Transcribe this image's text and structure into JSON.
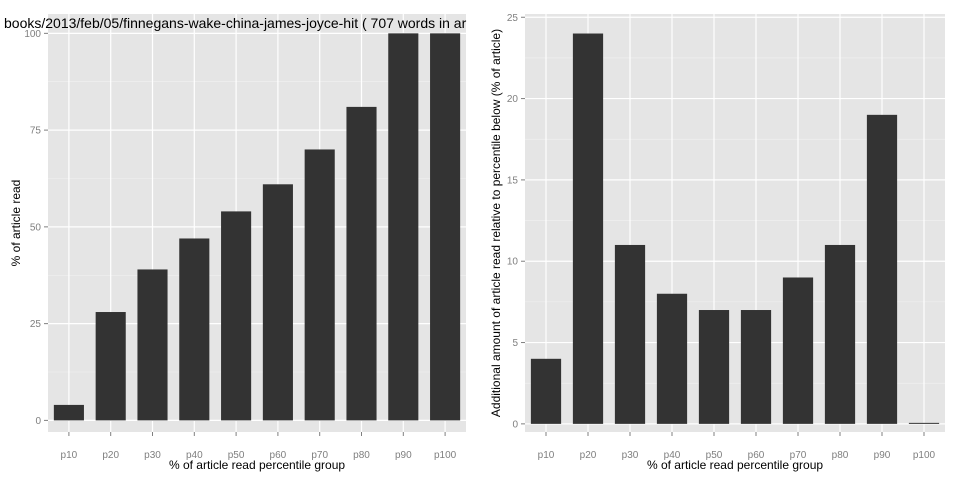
{
  "chart_data": [
    {
      "type": "bar",
      "title": "books/2013/feb/05/finnegans-wake-china-james-joyce-hit ( 707 words in ar",
      "xlabel": "% of article read percentile group",
      "ylabel": "% of article read",
      "categories": [
        "p10",
        "p20",
        "p30",
        "p40",
        "p50",
        "p60",
        "p70",
        "p80",
        "p90",
        "p100"
      ],
      "values": [
        4,
        28,
        39,
        47,
        54,
        61,
        70,
        81,
        100,
        100
      ],
      "yticks": [
        0,
        25,
        50,
        75,
        100
      ],
      "ylim": [
        -3,
        105
      ],
      "bar_color": "#333333",
      "panel_color": "#e5e5e5",
      "grid": true
    },
    {
      "type": "bar",
      "title": "",
      "xlabel": "% of article read percentile group",
      "ylabel": "Additional amount of article read relative to percentile below (% of article)",
      "categories": [
        "p10",
        "p20",
        "p30",
        "p40",
        "p50",
        "p60",
        "p70",
        "p80",
        "p90",
        "p100"
      ],
      "values": [
        4,
        24,
        11,
        8,
        7,
        7,
        9,
        11,
        19,
        0
      ],
      "yticks": [
        0,
        5,
        10,
        15,
        20,
        25
      ],
      "ylim": [
        -0.5,
        25.2
      ],
      "bar_color": "#333333",
      "panel_color": "#e5e5e5",
      "grid": true
    }
  ]
}
